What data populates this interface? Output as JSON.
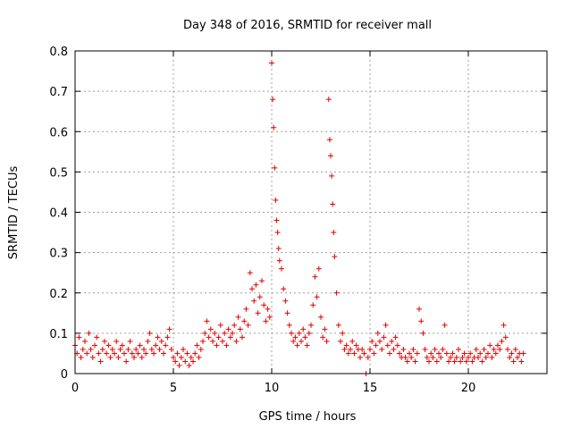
{
  "chart_data": {
    "type": "scatter",
    "title": "Day 348 of 2016, SRMTID for receiver mall",
    "xlabel": "GPS time / hours",
    "ylabel": "SRMTID / TECUs",
    "xlim": [
      0,
      24
    ],
    "ylim": [
      0,
      0.8
    ],
    "xticks": [
      0,
      5,
      10,
      15,
      20
    ],
    "xtick_labels": [
      "0",
      "5",
      "10",
      "15",
      "20"
    ],
    "yticks": [
      0,
      0.1,
      0.2,
      0.3,
      0.4,
      0.5,
      0.6,
      0.7,
      0.8
    ],
    "ytick_labels": [
      "0",
      "0.1",
      "0.2",
      "0.3",
      "0.4",
      "0.5",
      "0.6",
      "0.7",
      "0.8"
    ],
    "grid": true,
    "marker": "+",
    "color": "#e00000",
    "series": [
      {
        "name": "SRMTID",
        "points": [
          [
            0.0,
            0.07
          ],
          [
            0.1,
            0.05
          ],
          [
            0.2,
            0.09
          ],
          [
            0.3,
            0.04
          ],
          [
            0.4,
            0.06
          ],
          [
            0.5,
            0.08
          ],
          [
            0.6,
            0.05
          ],
          [
            0.7,
            0.1
          ],
          [
            0.8,
            0.06
          ],
          [
            0.9,
            0.04
          ],
          [
            1.0,
            0.07
          ],
          [
            1.1,
            0.09
          ],
          [
            1.2,
            0.05
          ],
          [
            1.3,
            0.03
          ],
          [
            1.4,
            0.06
          ],
          [
            1.5,
            0.08
          ],
          [
            1.6,
            0.05
          ],
          [
            1.7,
            0.07
          ],
          [
            1.8,
            0.04
          ],
          [
            1.9,
            0.06
          ],
          [
            2.0,
            0.05
          ],
          [
            2.1,
            0.08
          ],
          [
            2.2,
            0.04
          ],
          [
            2.3,
            0.06
          ],
          [
            2.4,
            0.07
          ],
          [
            2.5,
            0.05
          ],
          [
            2.6,
            0.03
          ],
          [
            2.7,
            0.06
          ],
          [
            2.8,
            0.08
          ],
          [
            2.9,
            0.05
          ],
          [
            3.0,
            0.04
          ],
          [
            3.1,
            0.06
          ],
          [
            3.2,
            0.05
          ],
          [
            3.3,
            0.07
          ],
          [
            3.4,
            0.04
          ],
          [
            3.5,
            0.06
          ],
          [
            3.6,
            0.05
          ],
          [
            3.7,
            0.08
          ],
          [
            3.8,
            0.1
          ],
          [
            3.9,
            0.06
          ],
          [
            4.0,
            0.05
          ],
          [
            4.1,
            0.07
          ],
          [
            4.2,
            0.09
          ],
          [
            4.3,
            0.06
          ],
          [
            4.4,
            0.08
          ],
          [
            4.5,
            0.05
          ],
          [
            4.6,
            0.07
          ],
          [
            4.7,
            0.09
          ],
          [
            4.8,
            0.11
          ],
          [
            4.9,
            0.06
          ],
          [
            5.0,
            0.04
          ],
          [
            5.1,
            0.03
          ],
          [
            5.2,
            0.05
          ],
          [
            5.3,
            0.02
          ],
          [
            5.4,
            0.04
          ],
          [
            5.5,
            0.06
          ],
          [
            5.6,
            0.03
          ],
          [
            5.7,
            0.05
          ],
          [
            5.8,
            0.02
          ],
          [
            5.9,
            0.04
          ],
          [
            6.0,
            0.03
          ],
          [
            6.1,
            0.05
          ],
          [
            6.2,
            0.07
          ],
          [
            6.3,
            0.04
          ],
          [
            6.4,
            0.06
          ],
          [
            6.5,
            0.08
          ],
          [
            6.6,
            0.1
          ],
          [
            6.7,
            0.13
          ],
          [
            6.8,
            0.09
          ],
          [
            6.9,
            0.11
          ],
          [
            7.0,
            0.08
          ],
          [
            7.1,
            0.1
          ],
          [
            7.2,
            0.07
          ],
          [
            7.3,
            0.09
          ],
          [
            7.4,
            0.12
          ],
          [
            7.5,
            0.08
          ],
          [
            7.6,
            0.1
          ],
          [
            7.7,
            0.07
          ],
          [
            7.8,
            0.11
          ],
          [
            7.9,
            0.09
          ],
          [
            8.0,
            0.1
          ],
          [
            8.1,
            0.12
          ],
          [
            8.2,
            0.08
          ],
          [
            8.3,
            0.14
          ],
          [
            8.4,
            0.11
          ],
          [
            8.5,
            0.09
          ],
          [
            8.6,
            0.13
          ],
          [
            8.7,
            0.16
          ],
          [
            8.8,
            0.12
          ],
          [
            8.9,
            0.25
          ],
          [
            9.0,
            0.21
          ],
          [
            9.1,
            0.18
          ],
          [
            9.2,
            0.22
          ],
          [
            9.3,
            0.15
          ],
          [
            9.4,
            0.19
          ],
          [
            9.5,
            0.23
          ],
          [
            9.6,
            0.17
          ],
          [
            9.7,
            0.13
          ],
          [
            9.8,
            0.16
          ],
          [
            9.9,
            0.14
          ],
          [
            10.0,
            0.77
          ],
          [
            10.05,
            0.68
          ],
          [
            10.1,
            0.61
          ],
          [
            10.15,
            0.51
          ],
          [
            10.2,
            0.43
          ],
          [
            10.25,
            0.38
          ],
          [
            10.3,
            0.35
          ],
          [
            10.35,
            0.31
          ],
          [
            10.4,
            0.28
          ],
          [
            10.5,
            0.26
          ],
          [
            10.6,
            0.21
          ],
          [
            10.7,
            0.18
          ],
          [
            10.8,
            0.15
          ],
          [
            10.9,
            0.12
          ],
          [
            11.0,
            0.1
          ],
          [
            11.1,
            0.08
          ],
          [
            11.2,
            0.09
          ],
          [
            11.3,
            0.07
          ],
          [
            11.4,
            0.1
          ],
          [
            11.5,
            0.08
          ],
          [
            11.6,
            0.11
          ],
          [
            11.7,
            0.09
          ],
          [
            11.8,
            0.07
          ],
          [
            11.9,
            0.1
          ],
          [
            12.0,
            0.12
          ],
          [
            12.1,
            0.17
          ],
          [
            12.2,
            0.24
          ],
          [
            12.3,
            0.19
          ],
          [
            12.4,
            0.26
          ],
          [
            12.5,
            0.14
          ],
          [
            12.6,
            0.09
          ],
          [
            12.7,
            0.11
          ],
          [
            12.8,
            0.08
          ],
          [
            12.9,
            0.68
          ],
          [
            12.95,
            0.58
          ],
          [
            13.0,
            0.54
          ],
          [
            13.05,
            0.49
          ],
          [
            13.1,
            0.42
          ],
          [
            13.15,
            0.35
          ],
          [
            13.2,
            0.29
          ],
          [
            13.3,
            0.2
          ],
          [
            13.4,
            0.12
          ],
          [
            13.5,
            0.08
          ],
          [
            13.6,
            0.1
          ],
          [
            13.7,
            0.06
          ],
          [
            13.8,
            0.07
          ],
          [
            13.9,
            0.05
          ],
          [
            14.0,
            0.06
          ],
          [
            14.1,
            0.08
          ],
          [
            14.2,
            0.05
          ],
          [
            14.3,
            0.07
          ],
          [
            14.4,
            0.06
          ],
          [
            14.5,
            0.04
          ],
          [
            14.6,
            0.06
          ],
          [
            14.7,
            0.05
          ],
          [
            14.8,
            0.0
          ],
          [
            14.9,
            0.04
          ],
          [
            15.0,
            0.06
          ],
          [
            15.1,
            0.08
          ],
          [
            15.2,
            0.05
          ],
          [
            15.3,
            0.07
          ],
          [
            15.4,
            0.1
          ],
          [
            15.5,
            0.08
          ],
          [
            15.6,
            0.06
          ],
          [
            15.7,
            0.09
          ],
          [
            15.8,
            0.12
          ],
          [
            15.9,
            0.07
          ],
          [
            16.0,
            0.05
          ],
          [
            16.1,
            0.08
          ],
          [
            16.2,
            0.06
          ],
          [
            16.3,
            0.09
          ],
          [
            16.4,
            0.07
          ],
          [
            16.5,
            0.05
          ],
          [
            16.6,
            0.04
          ],
          [
            16.7,
            0.06
          ],
          [
            16.8,
            0.04
          ],
          [
            16.9,
            0.03
          ],
          [
            17.0,
            0.05
          ],
          [
            17.1,
            0.04
          ],
          [
            17.2,
            0.06
          ],
          [
            17.3,
            0.03
          ],
          [
            17.4,
            0.05
          ],
          [
            17.5,
            0.16
          ],
          [
            17.6,
            0.13
          ],
          [
            17.7,
            0.1
          ],
          [
            17.8,
            0.06
          ],
          [
            17.9,
            0.04
          ],
          [
            18.0,
            0.03
          ],
          [
            18.1,
            0.05
          ],
          [
            18.2,
            0.04
          ],
          [
            18.3,
            0.06
          ],
          [
            18.4,
            0.03
          ],
          [
            18.5,
            0.05
          ],
          [
            18.6,
            0.04
          ],
          [
            18.7,
            0.06
          ],
          [
            18.8,
            0.12
          ],
          [
            18.9,
            0.05
          ],
          [
            19.0,
            0.03
          ],
          [
            19.1,
            0.04
          ],
          [
            19.2,
            0.05
          ],
          [
            19.3,
            0.03
          ],
          [
            19.4,
            0.04
          ],
          [
            19.5,
            0.06
          ],
          [
            19.6,
            0.03
          ],
          [
            19.7,
            0.04
          ],
          [
            19.8,
            0.05
          ],
          [
            19.9,
            0.03
          ],
          [
            20.0,
            0.04
          ],
          [
            20.1,
            0.05
          ],
          [
            20.2,
            0.03
          ],
          [
            20.3,
            0.04
          ],
          [
            20.4,
            0.06
          ],
          [
            20.5,
            0.04
          ],
          [
            20.6,
            0.05
          ],
          [
            20.7,
            0.03
          ],
          [
            20.8,
            0.06
          ],
          [
            20.9,
            0.04
          ],
          [
            21.0,
            0.05
          ],
          [
            21.1,
            0.07
          ],
          [
            21.2,
            0.04
          ],
          [
            21.3,
            0.06
          ],
          [
            21.4,
            0.05
          ],
          [
            21.5,
            0.07
          ],
          [
            21.6,
            0.06
          ],
          [
            21.7,
            0.08
          ],
          [
            21.8,
            0.12
          ],
          [
            21.9,
            0.09
          ],
          [
            22.0,
            0.06
          ],
          [
            22.1,
            0.04
          ],
          [
            22.2,
            0.05
          ],
          [
            22.3,
            0.03
          ],
          [
            22.4,
            0.06
          ],
          [
            22.5,
            0.04
          ],
          [
            22.6,
            0.05
          ],
          [
            22.7,
            0.03
          ],
          [
            22.8,
            0.05
          ]
        ]
      }
    ]
  }
}
